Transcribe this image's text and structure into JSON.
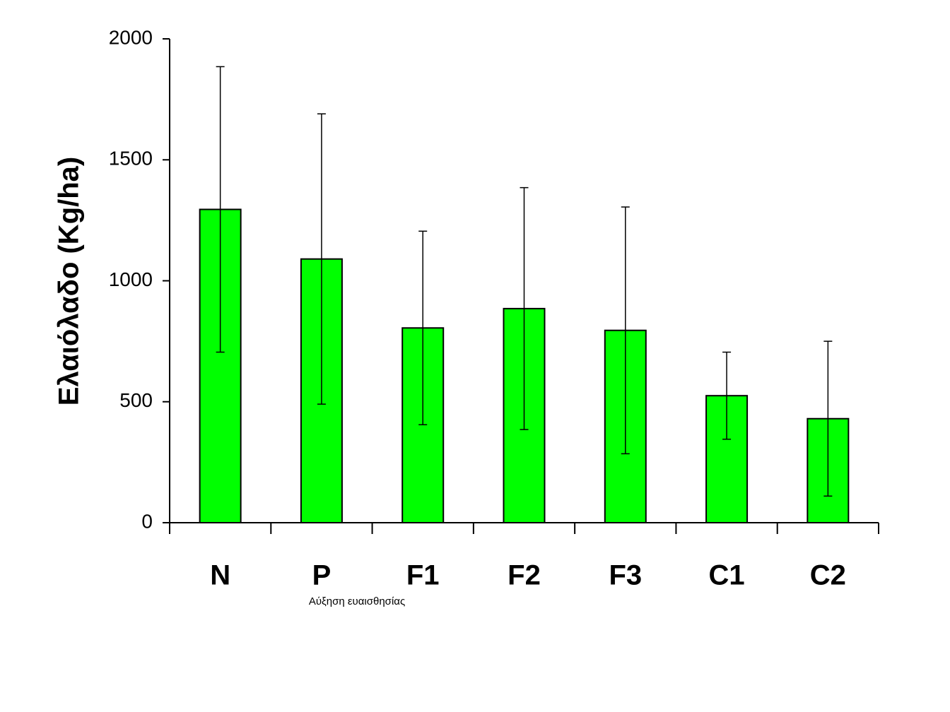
{
  "chart_data": {
    "type": "bar",
    "y_label": "Ελαιόλαδο (Kg/ha)",
    "annotation": "Αύξηση ευαισθησίας",
    "categories": [
      "N",
      "P",
      "F1",
      "F2",
      "F3",
      "C1",
      "C2"
    ],
    "values": [
      1295,
      1090,
      805,
      885,
      795,
      525,
      430
    ],
    "errors": [
      590,
      600,
      400,
      500,
      510,
      180,
      320
    ],
    "color": "#00ff00",
    "ylim": [
      0,
      2000
    ],
    "yticks": [
      0,
      500,
      1000,
      1500,
      2000
    ],
    "grid": false
  }
}
